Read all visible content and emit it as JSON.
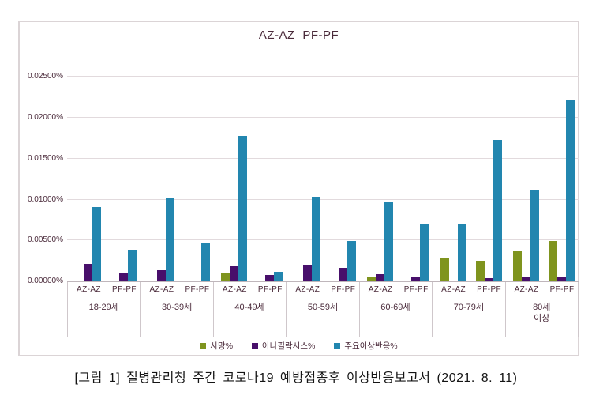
{
  "chart": {
    "title": "AZ-AZ PF-PF",
    "caption": "[그림 1] 질병관리청 주간 코로나19 예방접종후 이상반응보고서 (2021. 8. 11)"
  },
  "colors": {
    "death": "#7F941E",
    "anaphylaxis": "#480F6B",
    "major_adverse": "#2286AF",
    "axis_text": "#4B2B3B",
    "grid_line": "#E2DADD",
    "chart_border": "#DBD4D6"
  },
  "chart_data": {
    "type": "bar",
    "title": "AZ-AZ PF-PF",
    "xlabel": "",
    "ylabel": "",
    "grid": true,
    "legend_position": "bottom",
    "ylim": [
      0,
      0.027
    ],
    "yticks": [
      {
        "value": 0.0,
        "label": "0.00000%"
      },
      {
        "value": 0.005,
        "label": "0.00500%"
      },
      {
        "value": 0.01,
        "label": "0.01000%"
      },
      {
        "value": 0.015,
        "label": "0.01500%"
      },
      {
        "value": 0.02,
        "label": "0.02000%"
      },
      {
        "value": 0.025,
        "label": "0.02500%"
      }
    ],
    "categories": [
      "18-29세",
      "30-39세",
      "40-49세",
      "50-59세",
      "60-69세",
      "70-79세",
      "80세\n이상"
    ],
    "subcategories": [
      "AZ-AZ",
      "PF-PF"
    ],
    "series": [
      {
        "name": "사망%",
        "color": "#7F941E",
        "values": {
          "AZ-AZ": [
            0,
            0,
            0.0011,
            0,
            0.0005,
            0.0028,
            0.0038
          ],
          "PF-PF": [
            0,
            0,
            0,
            0,
            0,
            0.0025,
            0.0049
          ]
        }
      },
      {
        "name": "아나필락시스%",
        "color": "#480F6B",
        "values": {
          "AZ-AZ": [
            0.0021,
            0.0014,
            0.0018,
            0.002,
            0.0009,
            0,
            0.0005
          ],
          "PF-PF": [
            0.0011,
            0,
            0.0008,
            0.0016,
            0.0005,
            0.0004,
            0.0006
          ]
        }
      },
      {
        "name": "주요이상반응%",
        "color": "#2286AF",
        "values": {
          "AZ-AZ": [
            0.0091,
            0.0102,
            0.0178,
            0.0103,
            0.0097,
            0.0071,
            0.0111
          ],
          "PF-PF": [
            0.0039,
            0.0046,
            0.0012,
            0.0049,
            0.0071,
            0.0173,
            0.0222
          ]
        }
      }
    ]
  }
}
